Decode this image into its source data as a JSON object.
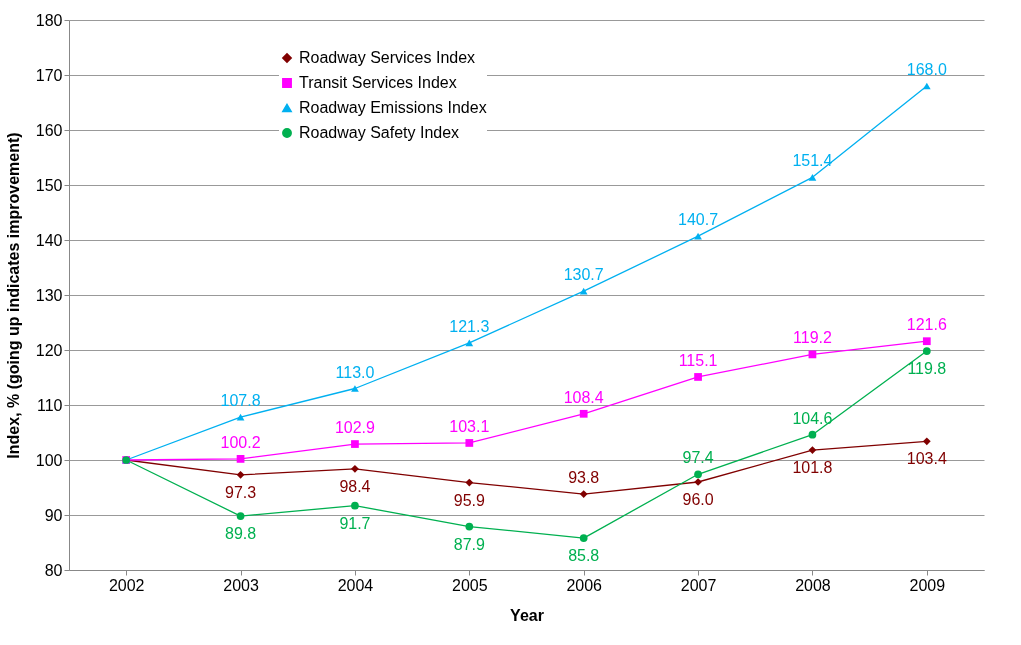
{
  "chart_data": {
    "type": "line",
    "xlabel": "Year",
    "ylabel": "Index, % (going up indicates improvement)",
    "categories": [
      "2002",
      "2003",
      "2004",
      "2005",
      "2006",
      "2007",
      "2008",
      "2009"
    ],
    "ylim": [
      80,
      180
    ],
    "yticks": [
      80,
      90,
      100,
      110,
      120,
      130,
      140,
      150,
      160,
      170,
      180
    ],
    "grid": "y",
    "legend": "top left",
    "series": [
      {
        "name": "Roadway Services Index",
        "color": "#800000",
        "marker": "diamond",
        "values": [
          100,
          97.3,
          98.4,
          95.9,
          93.8,
          96.0,
          101.8,
          103.4
        ],
        "value_labels": [
          null,
          "97.3",
          "98.4",
          "95.9",
          "93.8",
          "96.0",
          "101.8",
          "103.4"
        ]
      },
      {
        "name": "Transit Services Index",
        "color": "#ff00ff",
        "marker": "square",
        "values": [
          100,
          100.2,
          102.9,
          103.1,
          108.4,
          115.1,
          119.2,
          121.6
        ],
        "value_labels": [
          null,
          "100.2",
          "102.9",
          "103.1",
          "108.4",
          "115.1",
          "119.2",
          "121.6"
        ]
      },
      {
        "name": "Roadway Emissions Index",
        "color": "#00b0f0",
        "marker": "triangle",
        "values": [
          100,
          107.8,
          113.0,
          121.3,
          130.7,
          140.7,
          151.4,
          168.0
        ],
        "value_labels": [
          null,
          "107.8",
          "113.0",
          "121.3",
          "130.7",
          "140.7",
          "151.4",
          "168.0"
        ]
      },
      {
        "name": "Roadway Safety Index",
        "color": "#00b050",
        "marker": "circle",
        "values": [
          100,
          89.8,
          91.7,
          87.9,
          85.8,
          97.4,
          104.6,
          119.8
        ],
        "value_labels": [
          null,
          "89.8",
          "91.7",
          "87.9",
          "85.8",
          "97.4",
          "104.6",
          "119.8"
        ]
      }
    ]
  }
}
